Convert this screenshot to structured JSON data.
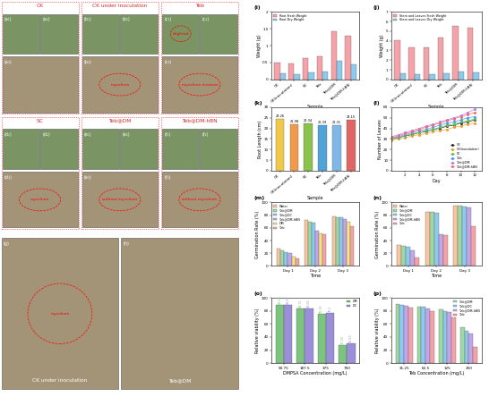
{
  "photo_panels": [
    {
      "title": "CK",
      "labels": [
        "(a₁)",
        "(a₂)",
        "(a₃)"
      ],
      "notes": {}
    },
    {
      "title": "CK under inoculation",
      "labels": [
        "(b₁)",
        "(b₂)",
        "(b₃)"
      ],
      "notes": {
        "(b₃)": "mycelium"
      }
    },
    {
      "title": "Teb",
      "labels": [
        "(c₁)",
        "(c₂)",
        "(c₃)"
      ],
      "notes": {
        "(c₁)": "blighted",
        "(c₃)": "mycelium invasion"
      }
    },
    {
      "title": "SC",
      "labels": [
        "(d₁)",
        "(d₂)",
        "(d₃)"
      ],
      "notes": {
        "(d₃)": "mycelium"
      }
    },
    {
      "title": "Teb@DM",
      "labels": [
        "(e₁)",
        "(e₂)",
        "(e₃)"
      ],
      "notes": {
        "(e₃)": "without mycelium"
      }
    },
    {
      "title": "Teb@DM-hBN",
      "labels": [
        "(f₁)",
        "(f₂)",
        "(f₃)"
      ],
      "notes": {
        "(f₃)": "without mycelium"
      }
    }
  ],
  "large_panels": [
    {
      "label": "(g)",
      "title": "CK under inoculation",
      "notes": [
        "mycelium"
      ]
    },
    {
      "label": "(h)",
      "title": "Teb@DM",
      "notes": []
    }
  ],
  "chart_data": [
    {
      "label": "(i)",
      "type": "bar",
      "x_label": "Sample",
      "y_label": "Weight (g)",
      "categories": [
        "CK",
        "CK(inoculation)",
        "SC",
        "Teb",
        "Teb@DM",
        "Teb@DM-hBN"
      ],
      "series": [
        {
          "name": "Root Fresh Weight",
          "color": "#f4a3a8",
          "values": [
            0.5,
            0.48,
            0.62,
            0.68,
            1.42,
            1.28
          ]
        },
        {
          "name": "Root Dry Weight",
          "color": "#8ec9ee",
          "values": [
            0.18,
            0.15,
            0.2,
            0.22,
            0.55,
            0.45
          ]
        }
      ],
      "ylim": [
        0,
        2
      ],
      "yticks": [
        0,
        0.5,
        1,
        1.5,
        2
      ],
      "legend": "upper left"
    },
    {
      "label": "(j)",
      "type": "bar",
      "x_label": "Sample",
      "y_label": "Weight (g)",
      "categories": [
        "CK",
        "CK(inoculation)",
        "SC",
        "Teb",
        "Teb@DM",
        "Teb@DM-hBN"
      ],
      "series": [
        {
          "name": "Stem and Leaves Fresh Weight",
          "color": "#f4a3a8",
          "values": [
            4.1,
            3.3,
            3.3,
            4.3,
            5.5,
            5.4
          ]
        },
        {
          "name": "Stem and Leaves Dry Weight",
          "color": "#8ec9ee",
          "values": [
            0.6,
            0.5,
            0.5,
            0.6,
            0.8,
            0.7
          ]
        }
      ],
      "ylim": [
        0,
        7
      ],
      "yticks": [
        0,
        1,
        2,
        3,
        4,
        5,
        6,
        7
      ],
      "legend": "upper left"
    },
    {
      "label": "(k)",
      "type": "bar",
      "x_label": "Sample",
      "y_label": "Root Length (cm)",
      "categories": [
        "CK",
        "CK(inoculation)",
        "SC",
        "Teb",
        "Teb@DM",
        "Teb@DM-hBN"
      ],
      "values": [
        24.26,
        21.98,
        22.34,
        21.39,
        21.31,
        24.15
      ],
      "colors": [
        "#f2c84b",
        "#f29a4b",
        "#8bc34a",
        "#4fa3d9",
        "#7fb8e6",
        "#e06666"
      ],
      "data_labels": true,
      "ylim": [
        0,
        30
      ],
      "yticks": [
        0,
        5,
        10,
        15,
        20,
        25,
        30
      ]
    },
    {
      "label": "(l)",
      "type": "line",
      "x_label": "Day",
      "y_label": "Number of Leaves",
      "x": [
        0,
        1,
        2,
        3,
        4,
        5,
        6,
        7,
        8,
        9,
        10,
        11,
        12
      ],
      "series": [
        {
          "name": "CK",
          "color": "#333333",
          "values": [
            30,
            31,
            33,
            34,
            36,
            37,
            39,
            40,
            42,
            43,
            45,
            46,
            48
          ]
        },
        {
          "name": "CK(inoculation)",
          "color": "#e6a23c",
          "values": [
            29,
            30,
            31,
            33,
            34,
            35,
            37,
            38,
            39,
            41,
            42,
            44,
            45
          ]
        },
        {
          "name": "SC",
          "color": "#67c23a",
          "values": [
            30,
            31,
            33,
            35,
            36,
            38,
            39,
            41,
            43,
            44,
            46,
            47,
            49
          ]
        },
        {
          "name": "Teb",
          "color": "#409eff",
          "values": [
            31,
            32,
            34,
            36,
            38,
            39,
            41,
            43,
            45,
            46,
            48,
            50,
            51
          ]
        },
        {
          "name": "Teb@DM",
          "color": "#b37feb",
          "values": [
            32,
            34,
            36,
            38,
            40,
            42,
            44,
            46,
            48,
            50,
            52,
            55,
            58
          ]
        },
        {
          "name": "Teb@DM-hBN",
          "color": "#f56c6c",
          "values": [
            31,
            33,
            35,
            37,
            39,
            41,
            43,
            45,
            47,
            49,
            51,
            53,
            55
          ]
        }
      ],
      "marker": "o",
      "xlim": [
        0,
        13
      ],
      "xticks": [
        2,
        4,
        6,
        8,
        10,
        12
      ],
      "ylim": [
        0,
        60
      ],
      "yticks": [
        0,
        10,
        20,
        30,
        40,
        50,
        60
      ],
      "legend": "lower right"
    },
    {
      "label": "(m)",
      "type": "bar",
      "x_label": "Time",
      "y_label": "Germination Rate (%)",
      "categories": [
        "Day 1",
        "Day 2",
        "Day 3"
      ],
      "series": [
        {
          "name": "Water",
          "color": "#f7c59f",
          "values": [
            28,
            72,
            78
          ]
        },
        {
          "name": "Teb@DM",
          "color": "#9fd8a4",
          "values": [
            25,
            70,
            77
          ]
        },
        {
          "name": "Teb@DC",
          "color": "#8ec9ee",
          "values": [
            22,
            68,
            76
          ]
        },
        {
          "name": "Teb@DM-hBN",
          "color": "#c3a6e8",
          "values": [
            20,
            55,
            74
          ]
        },
        {
          "name": "DM",
          "color": "#f4e285",
          "values": [
            15,
            52,
            70
          ]
        },
        {
          "name": "Teb",
          "color": "#f4a3a8",
          "values": [
            12,
            50,
            62
          ]
        }
      ],
      "ylim": [
        0,
        100
      ],
      "yticks": [
        0,
        20,
        40,
        60,
        80,
        100
      ],
      "legend": "upper left"
    },
    {
      "label": "(n)",
      "type": "bar",
      "x_label": "Time",
      "y_label": "Germination Rate (%)",
      "categories": [
        "Day 1",
        "Day 2",
        "Day 3"
      ],
      "series": [
        {
          "name": "Water",
          "color": "#f7c59f",
          "values": [
            33,
            85,
            95
          ]
        },
        {
          "name": "Teb@DM",
          "color": "#9fd8a4",
          "values": [
            32,
            85,
            95
          ]
        },
        {
          "name": "Teb@DC",
          "color": "#8ec9ee",
          "values": [
            30,
            84,
            94
          ]
        },
        {
          "name": "Teb@DM-hBN",
          "color": "#c3a6e8",
          "values": [
            25,
            50,
            92
          ]
        },
        {
          "name": "Teb",
          "color": "#f4a3a8",
          "values": [
            13,
            48,
            62
          ]
        }
      ],
      "ylim": [
        0,
        100
      ],
      "yticks": [
        0,
        20,
        40,
        60,
        80,
        100
      ],
      "legend": "upper left"
    },
    {
      "label": "(o)",
      "type": "bar",
      "x_label": "DMPSA Concentration (mg/L)",
      "y_label": "Relative viability (%)",
      "categories": [
        "93.75",
        "187.5",
        "375",
        "750"
      ],
      "series": [
        {
          "name": "DM",
          "color": "#7cc47f",
          "values": [
            88.63,
            83.35,
            75.95,
            27.38
          ]
        },
        {
          "name": "DC",
          "color": "#9b8fd9",
          "values": [
            88.87,
            83.56,
            76.2,
            30.63
          ]
        }
      ],
      "data_labels": true,
      "ylim": [
        0,
        100
      ],
      "yticks": [
        0,
        20,
        40,
        60,
        80,
        100
      ],
      "legend": "upper right"
    },
    {
      "label": "(p)",
      "type": "bar",
      "x_label": "Teb Concentration (mg/L)",
      "y_label": "Relative viability (%)",
      "categories": [
        "31.25",
        "62.5",
        "125",
        "250"
      ],
      "series": [
        {
          "name": "Teb@DM",
          "color": "#9fd8a4",
          "values": [
            90,
            87,
            82,
            55
          ]
        },
        {
          "name": "Teb@DC",
          "color": "#8ec9ee",
          "values": [
            89,
            86,
            80,
            50
          ]
        },
        {
          "name": "Teb@DM-hBN",
          "color": "#c3a6e8",
          "values": [
            88,
            84,
            78,
            45
          ]
        },
        {
          "name": "Teb",
          "color": "#f4a3a8",
          "values": [
            85,
            80,
            70,
            25
          ]
        }
      ],
      "ylim": [
        0,
        100
      ],
      "yticks": [
        0,
        20,
        40,
        60,
        80,
        100
      ],
      "legend": "upper right"
    }
  ]
}
